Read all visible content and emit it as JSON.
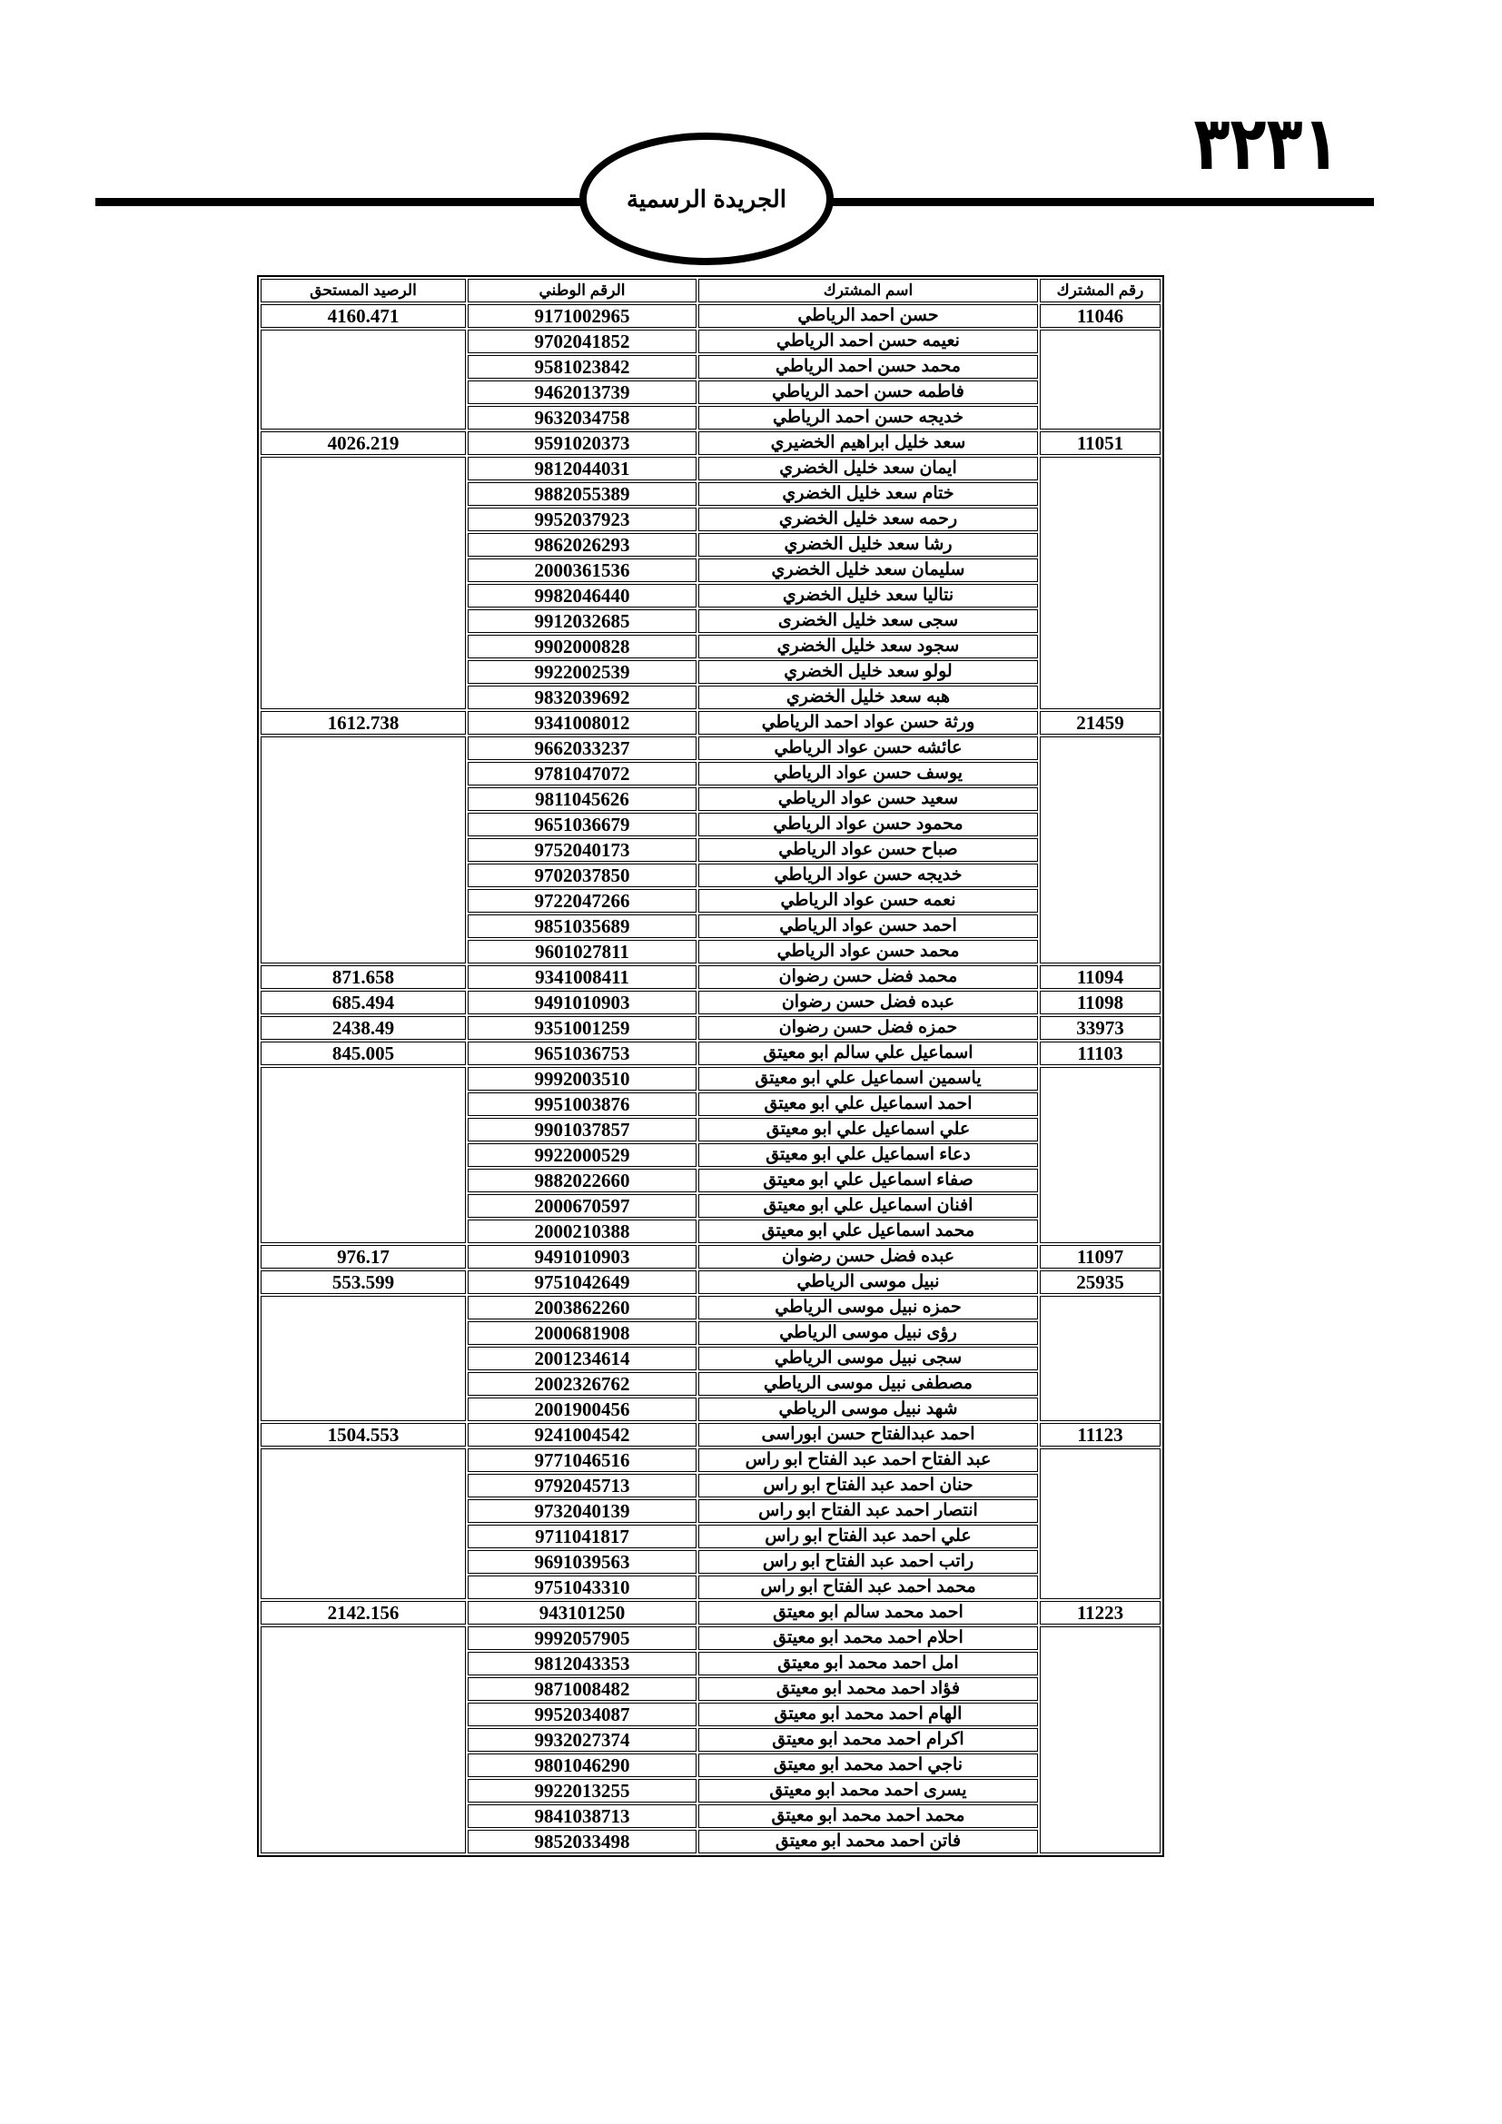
{
  "header": {
    "page_number": "٣٢٣١",
    "publication_title": "الجريدة الرسمية"
  },
  "table": {
    "columns": [
      "رقم المشترك",
      "اسم المشترك",
      "الرقم الوطني",
      "الرصيد المستحق"
    ],
    "groups": [
      {
        "subscriber_no": "11046",
        "balance": "4160.471",
        "holder": {
          "name": "حسن احمد الرياطي",
          "national_id": "9171002965"
        },
        "members": [
          {
            "name": "نعيمه حسن احمد الرياطي",
            "national_id": "9702041852"
          },
          {
            "name": "محمد حسن احمد الرياطي",
            "national_id": "9581023842"
          },
          {
            "name": "فاطمه حسن احمد الرياطي",
            "national_id": "9462013739"
          },
          {
            "name": "خديجه حسن احمد الرياطي",
            "national_id": "9632034758"
          }
        ]
      },
      {
        "subscriber_no": "11051",
        "balance": "4026.219",
        "holder": {
          "name": "سعد خليل ابراهيم الخضيري",
          "national_id": "9591020373"
        },
        "members": [
          {
            "name": "ايمان سعد خليل الخضري",
            "national_id": "9812044031"
          },
          {
            "name": "ختام سعد خليل الخضري",
            "national_id": "9882055389"
          },
          {
            "name": "رحمه سعد خليل الخضري",
            "national_id": "9952037923"
          },
          {
            "name": "رشا سعد خليل الخضري",
            "national_id": "9862026293"
          },
          {
            "name": "سليمان سعد خليل الخضري",
            "national_id": "2000361536"
          },
          {
            "name": "نتاليا سعد خليل الخضري",
            "national_id": "9982046440"
          },
          {
            "name": "سجى سعد خليل الخضرى",
            "national_id": "9912032685"
          },
          {
            "name": "سجود سعد خليل الخضري",
            "national_id": "9902000828"
          },
          {
            "name": "لولو سعد خليل الخضري",
            "national_id": "9922002539"
          },
          {
            "name": "هبه سعد خليل الخضري",
            "national_id": "9832039692"
          }
        ]
      },
      {
        "subscriber_no": "21459",
        "balance": "1612.738",
        "holder": {
          "name": "ورثة حسن عواد احمد الرياطي",
          "national_id": "9341008012"
        },
        "members": [
          {
            "name": "عائشه حسن عواد الرياطي",
            "national_id": "9662033237"
          },
          {
            "name": "يوسف حسن عواد الرياطي",
            "national_id": "9781047072"
          },
          {
            "name": "سعيد حسن عواد الرياطي",
            "national_id": "9811045626"
          },
          {
            "name": "محمود حسن عواد الرياطي",
            "national_id": "9651036679"
          },
          {
            "name": "صباح حسن عواد الرياطي",
            "national_id": "9752040173"
          },
          {
            "name": "خديجه حسن عواد الرياطي",
            "national_id": "9702037850"
          },
          {
            "name": "نعمه حسن عواد الرياطي",
            "national_id": "9722047266"
          },
          {
            "name": "احمد حسن عواد الرياطي",
            "national_id": "9851035689"
          },
          {
            "name": "محمد حسن عواد الرياطي",
            "national_id": "9601027811"
          }
        ]
      },
      {
        "subscriber_no": "11094",
        "balance": "871.658",
        "holder": {
          "name": "محمد فضل حسن رضوان",
          "national_id": "9341008411"
        },
        "members": []
      },
      {
        "subscriber_no": "11098",
        "balance": "685.494",
        "holder": {
          "name": "عبده فضل حسن رضوان",
          "national_id": "9491010903"
        },
        "members": []
      },
      {
        "subscriber_no": "33973",
        "balance": "2438.49",
        "holder": {
          "name": "حمزه فضل حسن رضوان",
          "national_id": "9351001259"
        },
        "members": []
      },
      {
        "subscriber_no": "11103",
        "balance": "845.005",
        "holder": {
          "name": "اسماعيل علي سالم ابو معيتق",
          "national_id": "9651036753"
        },
        "members": [
          {
            "name": "ياسمين اسماعيل علي ابو معيتق",
            "national_id": "9992003510"
          },
          {
            "name": "احمد اسماعيل علي ابو معيتق",
            "national_id": "9951003876"
          },
          {
            "name": "علي اسماعيل علي ابو معيتق",
            "national_id": "9901037857"
          },
          {
            "name": "دعاء اسماعيل علي ابو معيتق",
            "national_id": "9922000529"
          },
          {
            "name": "صفاء اسماعيل علي ابو معيتق",
            "national_id": "9882022660"
          },
          {
            "name": "افنان اسماعيل علي ابو معيتق",
            "national_id": "2000670597"
          },
          {
            "name": "محمد اسماعيل علي ابو معيتق",
            "national_id": "2000210388"
          }
        ]
      },
      {
        "subscriber_no": "11097",
        "balance": "976.17",
        "holder": {
          "name": "عبده فضل حسن  رضوان",
          "national_id": "9491010903"
        },
        "members": []
      },
      {
        "subscriber_no": "25935",
        "balance": "553.599",
        "holder": {
          "name": "نبيل موسى الرياطي",
          "national_id": "9751042649"
        },
        "members": [
          {
            "name": "حمزه نبيل موسى الرياطي",
            "national_id": "2003862260"
          },
          {
            "name": "رؤى نبيل موسى الرياطي",
            "national_id": "2000681908"
          },
          {
            "name": "سجى نبيل موسى الرياطي",
            "national_id": "2001234614"
          },
          {
            "name": "مصطفى نبيل موسى الرياطي",
            "national_id": "2002326762"
          },
          {
            "name": "شهد نبيل موسى الرياطي",
            "national_id": "2001900456"
          }
        ]
      },
      {
        "subscriber_no": "11123",
        "balance": "1504.553",
        "holder": {
          "name": "احمد عبدالفتاح حسن ابوراسى",
          "national_id": "9241004542"
        },
        "members": [
          {
            "name": "عبد الفتاح احمد عبد الفتاح ابو راس",
            "national_id": "9771046516"
          },
          {
            "name": "حنان احمد عبد الفتاح ابو راس",
            "national_id": "9792045713"
          },
          {
            "name": "انتصار احمد عبد الفتاح ابو راس",
            "national_id": "9732040139"
          },
          {
            "name": "علي احمد عبد الفتاح ابو راس",
            "national_id": "9711041817"
          },
          {
            "name": "راتب احمد عبد الفتاح ابو راس",
            "national_id": "9691039563"
          },
          {
            "name": "محمد احمد عبد الفتاح ابو راس",
            "national_id": "9751043310"
          }
        ]
      },
      {
        "subscriber_no": "11223",
        "balance": "2142.156",
        "holder": {
          "name": "احمد محمد سالم ابو معيتق",
          "national_id": "943101250"
        },
        "members": [
          {
            "name": "احلام احمد محمد ابو معيتق",
            "national_id": "9992057905"
          },
          {
            "name": "امل احمد محمد ابو معيتق",
            "national_id": "9812043353"
          },
          {
            "name": "فؤاد احمد محمد ابو معيتق",
            "national_id": "9871008482"
          },
          {
            "name": "الهام احمد محمد ابو معيتق",
            "national_id": "9952034087"
          },
          {
            "name": "اكرام احمد محمد ابو معيتق",
            "national_id": "9932027374"
          },
          {
            "name": "ناجي احمد محمد ابو معيتق",
            "national_id": "9801046290"
          },
          {
            "name": "يسرى احمد محمد ابو معيتق",
            "national_id": "9922013255"
          },
          {
            "name": "محمد احمد محمد ابو معيتق",
            "national_id": "9841038713"
          },
          {
            "name": "فاتن احمد محمد ابو معيتق",
            "national_id": "9852033498"
          }
        ]
      }
    ]
  }
}
